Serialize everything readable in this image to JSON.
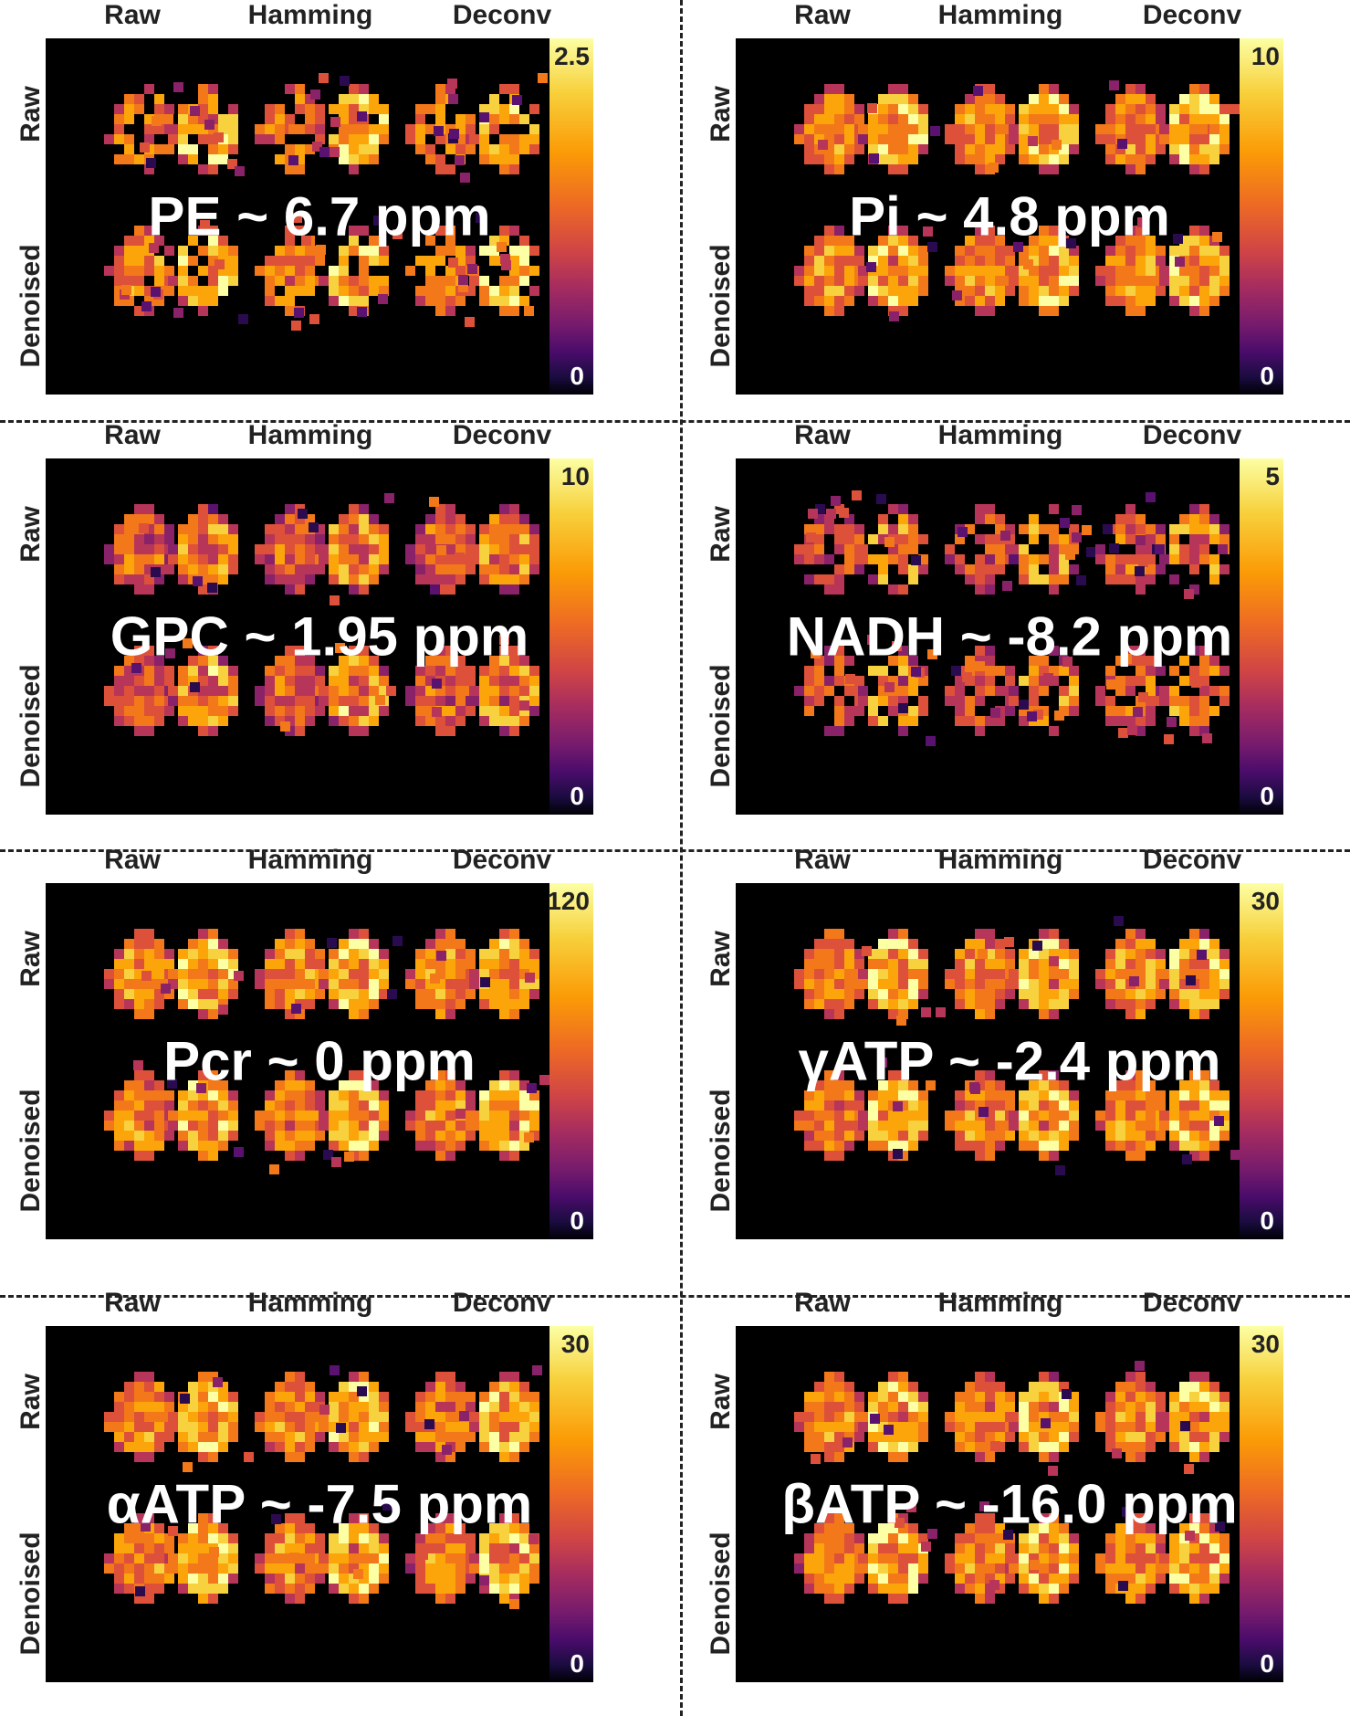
{
  "columns": [
    "Raw",
    "Hamming",
    "Deconv"
  ],
  "rows": [
    "Raw",
    "Denoised"
  ],
  "panels": [
    {
      "title": "PE ~ 6.7 ppm",
      "cb_max": "2.5",
      "cb_min": "0"
    },
    {
      "title": "Pi ~ 4.8 ppm",
      "cb_max": "10",
      "cb_min": "0"
    },
    {
      "title": "GPC ~ 1.95 ppm",
      "cb_max": "10",
      "cb_min": "0"
    },
    {
      "title": "NADH ~ -8.2 ppm",
      "cb_max": "5",
      "cb_min": "0"
    },
    {
      "title": "Pcr ~ 0 ppm",
      "cb_max": "120",
      "cb_min": "0"
    },
    {
      "title": "γATP ~ -2.4 ppm",
      "cb_max": "30",
      "cb_min": "0"
    },
    {
      "title": "αATP ~ -7.5 ppm",
      "cb_max": "30",
      "cb_min": "0"
    },
    {
      "title": "βATP ~ -16.0 ppm",
      "cb_max": "30",
      "cb_min": "0"
    }
  ]
}
